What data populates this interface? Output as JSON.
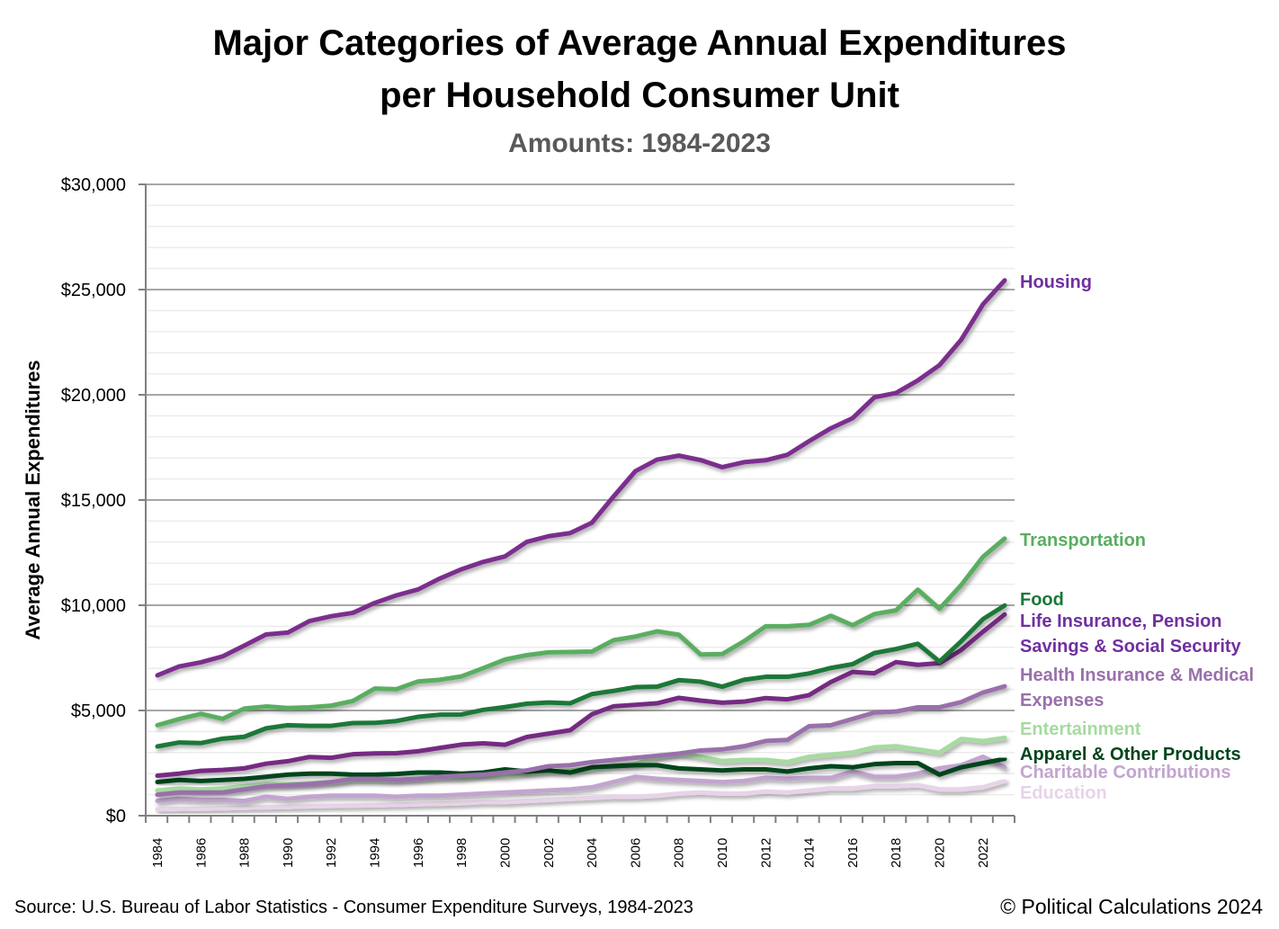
{
  "chart_data": {
    "type": "line",
    "title": "Major Categories of Average Annual Expenditures per Household Consumer Unit",
    "title_lines": [
      "Major Categories of Average Annual Expenditures",
      "per Household Consumer Unit"
    ],
    "subtitle": "Amounts: 1984-2023",
    "xlabel": "",
    "ylabel": "Average Annual Expenditures",
    "ylim": [
      0,
      30000
    ],
    "yticks": [
      "$0",
      "$5,000",
      "$10,000",
      "$15,000",
      "$20,000",
      "$25,000",
      "$30,000"
    ],
    "xticks": [
      "1984",
      "1986",
      "1988",
      "1990",
      "1992",
      "1994",
      "1996",
      "1998",
      "2000",
      "2002",
      "2004",
      "2006",
      "2008",
      "2010",
      "2012",
      "2014",
      "2016",
      "2018",
      "2020",
      "2022"
    ],
    "grid": true,
    "legend": "inline-right",
    "x": [
      1984,
      1985,
      1986,
      1987,
      1988,
      1989,
      1990,
      1991,
      1992,
      1993,
      1994,
      1995,
      1996,
      1997,
      1998,
      1999,
      2000,
      2001,
      2002,
      2003,
      2004,
      2005,
      2006,
      2007,
      2008,
      2009,
      2010,
      2011,
      2012,
      2013,
      2014,
      2015,
      2016,
      2017,
      2018,
      2019,
      2020,
      2021,
      2022,
      2023
    ],
    "series": [
      {
        "name": "Education",
        "label_lines": [
          "Education"
        ],
        "color": "#e7d4e8",
        "values": [
          300,
          320,
          330,
          350,
          380,
          400,
          420,
          450,
          470,
          480,
          500,
          520,
          550,
          570,
          600,
          650,
          650,
          700,
          750,
          800,
          850,
          900,
          900,
          950,
          1050,
          1100,
          1050,
          1050,
          1150,
          1100,
          1200,
          1300,
          1300,
          1400,
          1400,
          1450,
          1250,
          1250,
          1350,
          1650
        ]
      },
      {
        "name": "Charitable Contributions",
        "label_lines": [
          "Charitable Contributions"
        ],
        "color": "#c2a5cf",
        "values": [
          700,
          800,
          750,
          750,
          700,
          900,
          800,
          900,
          950,
          950,
          950,
          900,
          950,
          950,
          1000,
          1050,
          1100,
          1150,
          1200,
          1250,
          1350,
          1600,
          1850,
          1750,
          1700,
          1650,
          1600,
          1650,
          1800,
          1750,
          1800,
          1800,
          2100,
          1850,
          1850,
          2000,
          2250,
          2400,
          2800,
          2300
        ]
      },
      {
        "name": "Entertainment",
        "label_lines": [
          "Entertainment"
        ],
        "color": "#a6dba0",
        "values": [
          1200,
          1300,
          1250,
          1300,
          1400,
          1500,
          1500,
          1550,
          1600,
          1700,
          1700,
          1700,
          1750,
          1800,
          1800,
          1900,
          1900,
          2000,
          2100,
          2150,
          2250,
          2400,
          2450,
          2800,
          2950,
          2800,
          2600,
          2650,
          2650,
          2550,
          2800,
          2900,
          3000,
          3250,
          3300,
          3150,
          3000,
          3650,
          3550,
          3700
        ]
      },
      {
        "name": "Apparel & Other Products",
        "label_lines": [
          "Apparel & Other Products"
        ],
        "color": "#00441b",
        "values": [
          1600,
          1700,
          1650,
          1700,
          1750,
          1850,
          1950,
          2000,
          2000,
          1950,
          1950,
          1980,
          2050,
          2050,
          2000,
          2050,
          2200,
          2100,
          2150,
          2050,
          2300,
          2350,
          2400,
          2400,
          2250,
          2200,
          2150,
          2200,
          2200,
          2100,
          2250,
          2350,
          2300,
          2450,
          2500,
          2500,
          1950,
          2300,
          2500,
          2700
        ]
      },
      {
        "name": "Health Insurance & Medical Expenses",
        "label_lines": [
          "Health Insurance & Medical",
          "Expenses"
        ],
        "color": "#9970ab",
        "values": [
          1000,
          1100,
          1100,
          1100,
          1250,
          1400,
          1450,
          1500,
          1600,
          1750,
          1750,
          1700,
          1750,
          1850,
          1900,
          1950,
          2050,
          2150,
          2350,
          2400,
          2550,
          2650,
          2750,
          2850,
          2950,
          3100,
          3150,
          3300,
          3550,
          3600,
          4250,
          4300,
          4600,
          4900,
          4950,
          5150,
          5150,
          5400,
          5850,
          6150
        ]
      },
      {
        "name": "Life Insurance, Pension Savings & Social Security",
        "label_lines": [
          "Life Insurance, Pension",
          "Savings & Social Security"
        ],
        "color": "#762a83",
        "values": [
          1900,
          2000,
          2130,
          2175,
          2250,
          2470,
          2590,
          2790,
          2750,
          2920,
          2960,
          2970,
          3060,
          3220,
          3380,
          3440,
          3370,
          3740,
          3900,
          4060,
          4820,
          5200,
          5270,
          5340,
          5600,
          5470,
          5370,
          5420,
          5590,
          5530,
          5730,
          6350,
          6830,
          6770,
          7300,
          7170,
          7250,
          7870,
          8740,
          9560
        ]
      },
      {
        "name": "Food",
        "label_lines": [
          "Food"
        ],
        "color": "#1b7837",
        "values": [
          3290,
          3480,
          3450,
          3660,
          3750,
          4150,
          4300,
          4270,
          4270,
          4400,
          4410,
          4500,
          4700,
          4800,
          4810,
          5030,
          5160,
          5320,
          5380,
          5340,
          5780,
          5930,
          6110,
          6130,
          6440,
          6370,
          6130,
          6460,
          6600,
          6600,
          6760,
          7020,
          7200,
          7730,
          7920,
          8170,
          7320,
          8290,
          9340,
          9990
        ]
      },
      {
        "name": "Transportation",
        "label_lines": [
          "Transportation"
        ],
        "color": "#5aae61",
        "values": [
          4300,
          4590,
          4840,
          4600,
          5090,
          5190,
          5120,
          5150,
          5230,
          5450,
          6040,
          6010,
          6380,
          6460,
          6620,
          7010,
          7420,
          7630,
          7760,
          7780,
          7800,
          8340,
          8510,
          8760,
          8600,
          7660,
          7680,
          8290,
          9000,
          9000,
          9070,
          9500,
          9050,
          9580,
          9760,
          10740,
          9830,
          10960,
          12300,
          13170
        ]
      },
      {
        "name": "Housing",
        "label_lines": [
          "Housing"
        ],
        "color": "#7b2d8e",
        "values": [
          6670,
          7090,
          7290,
          7570,
          8080,
          8610,
          8700,
          9250,
          9480,
          9640,
          10110,
          10470,
          10750,
          11270,
          11710,
          12060,
          12320,
          13010,
          13280,
          13430,
          13920,
          15170,
          16370,
          16920,
          17110,
          16900,
          16560,
          16800,
          16890,
          17150,
          17800,
          18410,
          18890,
          19880,
          20090,
          20680,
          21410,
          22620,
          24300,
          25440
        ]
      }
    ],
    "label_colors": {
      "Housing": "#7030a0",
      "Transportation": "#5aae61",
      "Food": "#1b7837",
      "Life Insurance, Pension Savings & Social Security": "#7030a0",
      "Health Insurance & Medical Expenses": "#9970ab",
      "Entertainment": "#a6dba0",
      "Apparel & Other Products": "#00441b",
      "Charitable Contributions": "#c2a5cf",
      "Education": "#e7d4e8"
    }
  },
  "footer": {
    "source": "Source: U.S. Bureau of Labor Statistics - Consumer Expenditure Surveys, 1984-2023",
    "copyright": "© Political Calculations 2024"
  }
}
